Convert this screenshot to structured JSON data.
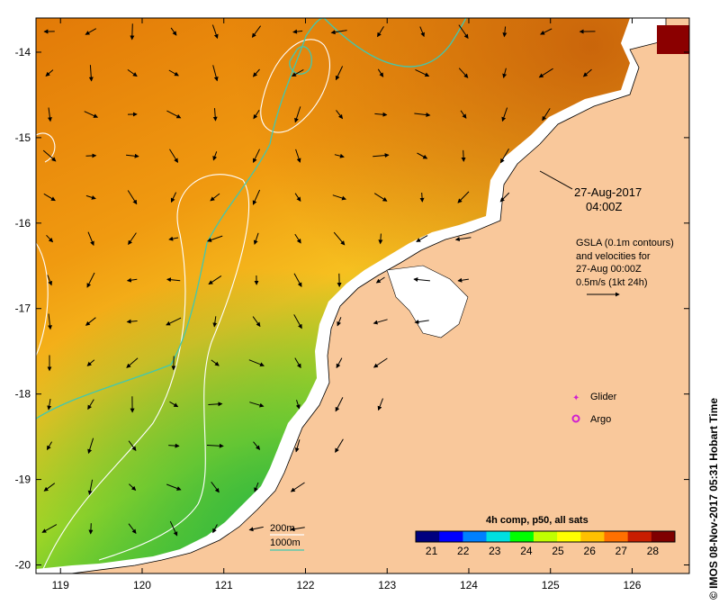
{
  "map": {
    "lon_range": [
      118.7,
      126.7
    ],
    "lat_range": [
      -20.1,
      -13.6
    ],
    "lon_ticks": [
      119,
      120,
      121,
      122,
      123,
      124,
      125,
      126
    ],
    "lat_ticks": [
      -14,
      -15,
      -16,
      -17,
      -18,
      -19,
      -20
    ],
    "lon_tick_labels": [
      "119",
      "120",
      "121",
      "122",
      "123",
      "124",
      "125",
      "126"
    ],
    "lat_tick_labels": [
      "-14",
      "-15",
      "-16",
      "-17",
      "-18",
      "-19",
      "-20"
    ],
    "colors": {
      "land": "#f9c89b",
      "contour_200m": "#ffffff",
      "contour_1000m": "#40c8b0",
      "glider": "#d020d0",
      "argo": "#d020d0",
      "coast": "#000000"
    }
  },
  "annotations": {
    "time_line1": "27-Aug-2017",
    "time_line2": "04:00Z",
    "gsla_line1": "GSLA (0.1m contours)",
    "gsla_line2": "and velocities for",
    "gsla_line3": "27-Aug 00:00Z",
    "gsla_line4": "0.5m/s (1kt 24h)"
  },
  "legend": {
    "glider_label": "Glider",
    "argo_label": "Argo",
    "depth_200": "200m",
    "depth_1000": "1000m"
  },
  "colorbar": {
    "title": "4h comp, p50, all sats",
    "range": [
      20.5,
      28.7
    ],
    "ticks": [
      "21",
      "22",
      "23",
      "24",
      "25",
      "26",
      "27",
      "28"
    ],
    "tick_values": [
      21,
      22,
      23,
      24,
      25,
      26,
      27,
      28
    ],
    "palette": [
      "#00007f",
      "#0000ff",
      "#0080ff",
      "#00e0e0",
      "#00ff00",
      "#c0ff00",
      "#ffff00",
      "#ffc000",
      "#ff7000",
      "#c81e00",
      "#7f0000"
    ]
  },
  "credit": "© IMOS 08-Nov-2017 05:31 Hobart Time"
}
